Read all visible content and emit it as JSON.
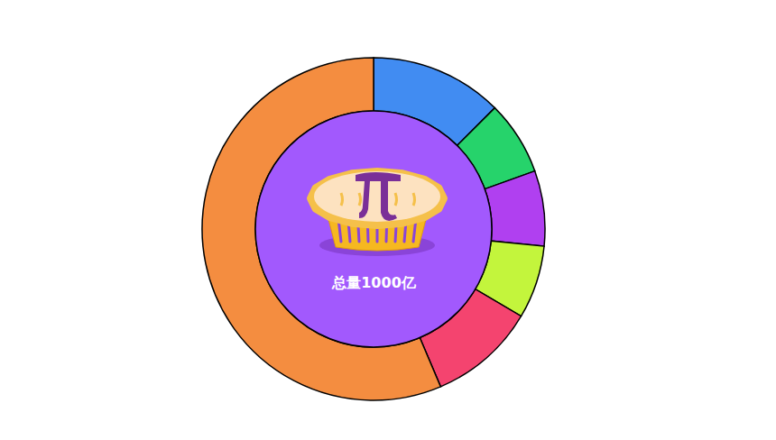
{
  "chart_data": {
    "type": "donut",
    "categories": [
      null,
      null,
      null,
      null,
      null,
      null
    ],
    "values": [
      125,
      70,
      71,
      69,
      101,
      564
    ],
    "colors": [
      "#418cf2",
      "#26d36b",
      "#b040f0",
      "#c3f53c",
      "#f4446f",
      "#f48d40"
    ],
    "annotations": [
      "总量1000亿"
    ],
    "data_labels": false
  }
}
